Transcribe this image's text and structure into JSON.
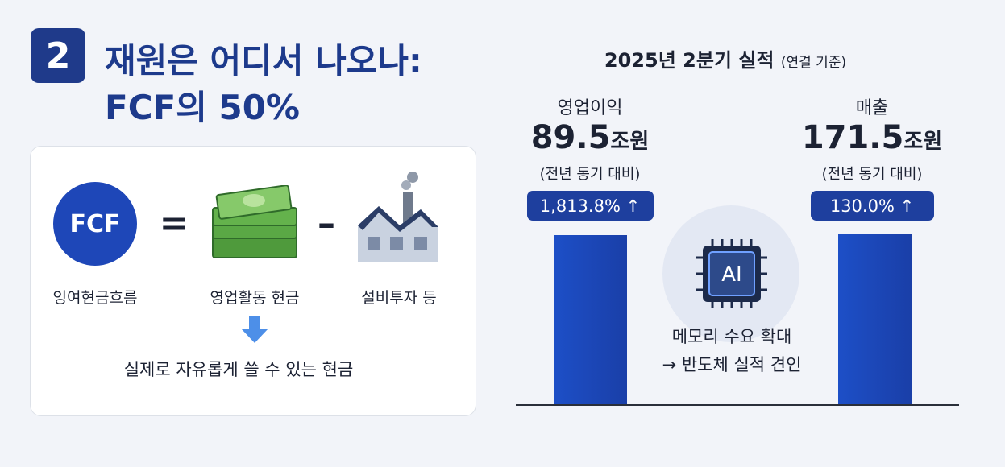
{
  "header": {
    "badge": "2",
    "title_line1": "재원은 어디서 나오나:",
    "title_line2": "FCF의 50%"
  },
  "formula": {
    "fcf": "FCF",
    "equals": "=",
    "minus": "–",
    "terms": [
      "잉여현금흐름",
      "영업활동 현금",
      "설비투자 등"
    ],
    "result": "실제로 자유롭게 쓸 수 있는 현금"
  },
  "results": {
    "title": "2025년 2분기 실적",
    "title_note": "(연결 기준)",
    "metrics": [
      {
        "label": "영업이익",
        "value": "89.5",
        "unit": "조원",
        "compare": "(전년 동기 대비)",
        "change": "1,813.8% ↑"
      },
      {
        "label": "매출",
        "value": "171.5",
        "unit": "조원",
        "compare": "(전년 동기 대비)",
        "change": "130.0% ↑"
      }
    ],
    "ai": {
      "chip": "AI",
      "line1": "메모리 수요 확대",
      "line2": "→ 반도체 실적 견인"
    }
  }
}
